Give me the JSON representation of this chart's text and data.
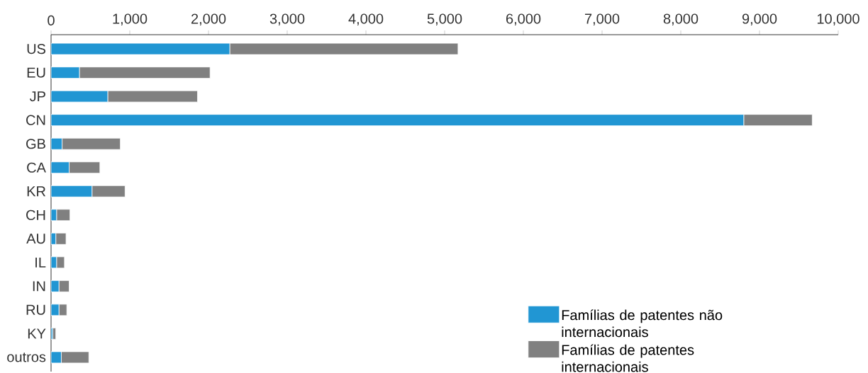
{
  "chart_data": {
    "type": "bar",
    "orientation": "horizontal",
    "stacked": true,
    "categories": [
      "US",
      "EU",
      "JP",
      "CN",
      "GB",
      "CA",
      "KR",
      "CH",
      "AU",
      "IL",
      "IN",
      "RU",
      "KY",
      "outros"
    ],
    "series": [
      {
        "name": "Famílias de patentes não internacionais",
        "color": "#2196d3",
        "values": [
          2270,
          360,
          720,
          8800,
          140,
          230,
          520,
          70,
          60,
          70,
          100,
          100,
          20,
          130
        ]
      },
      {
        "name": "Famílias de patentes internacionais",
        "color": "#808080",
        "values": [
          2900,
          1660,
          1140,
          870,
          740,
          390,
          420,
          170,
          130,
          100,
          130,
          100,
          40,
          350
        ]
      }
    ],
    "xlim": [
      0,
      10000
    ],
    "xticks": [
      0,
      {
        "value": 1000,
        "label": "1,000"
      },
      {
        "value": 2000,
        "label": "2,000"
      },
      {
        "value": 3000,
        "label": "3,000"
      },
      {
        "value": 4000,
        "label": "4,000"
      },
      {
        "value": 5000,
        "label": "5,000"
      },
      {
        "value": 6000,
        "label": "6,000"
      },
      {
        "value": 7000,
        "label": "7,000"
      },
      {
        "value": 8000,
        "label": "8,000"
      },
      {
        "value": 9000,
        "label": "9,000"
      },
      {
        "value": 10000,
        "label": "10,000"
      }
    ],
    "legend": "bottom right"
  }
}
